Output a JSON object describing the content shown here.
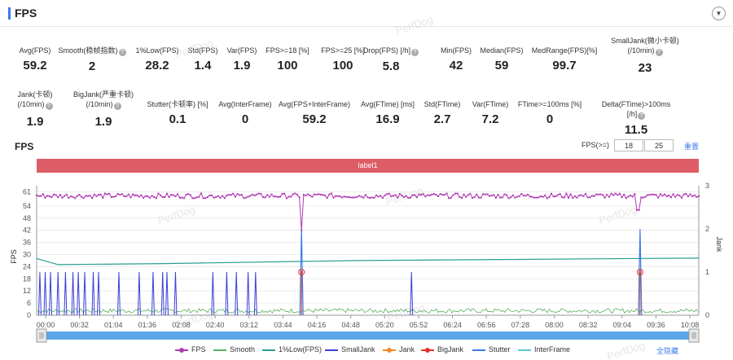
{
  "header": {
    "title": "FPS"
  },
  "metrics_row1": [
    {
      "label": "Avg(FPS)",
      "value": "59.2",
      "help": false
    },
    {
      "label": "Smooth(稳帧指数)",
      "value": "2",
      "help": true
    },
    {
      "label": "1%Low(FPS)",
      "value": "28.2",
      "help": false
    },
    {
      "label": "Std(FPS)",
      "value": "1.4",
      "help": false
    },
    {
      "label": "Var(FPS)",
      "value": "1.9",
      "help": false
    },
    {
      "label": "FPS>=18 [%]",
      "value": "100",
      "help": false
    },
    {
      "label": "FPS>=25 [%]",
      "value": "100",
      "help": false
    },
    {
      "label": "Drop(FPS) [/h]",
      "value": "5.8",
      "help": true
    },
    {
      "label": "Min(FPS)",
      "value": "42",
      "help": false
    },
    {
      "label": "Median(FPS)",
      "value": "59",
      "help": false
    },
    {
      "label": "MedRange(FPS)[%]",
      "value": "99.7",
      "help": false
    },
    {
      "label": "SmallJank(微小卡顿)",
      "label2": "(/10min)",
      "value": "23",
      "help": true
    }
  ],
  "metrics_row2": [
    {
      "label": "Jank(卡顿)",
      "label2": "(/10min)",
      "value": "1.9",
      "help": true
    },
    {
      "label": "BigJank(严重卡顿)",
      "label2": "(/10min)",
      "value": "1.9",
      "help": true
    },
    {
      "label": "Stutter(卡顿率) [%]",
      "value": "0.1",
      "help": false
    },
    {
      "label": "Avg(InterFrame)",
      "value": "0",
      "help": false
    },
    {
      "label": "Avg(FPS+InterFrame)",
      "value": "59.2",
      "help": false
    },
    {
      "label": "Avg(FTime) [ms]",
      "value": "16.9",
      "help": false
    },
    {
      "label": "Std(FTime)",
      "value": "2.7",
      "help": false
    },
    {
      "label": "Var(FTime)",
      "value": "7.2",
      "help": false
    },
    {
      "label": "FTime>=100ms [%]",
      "value": "0",
      "help": false
    },
    {
      "label": "Delta(FTime)>100ms [/h]",
      "value": "11.5",
      "help": true
    }
  ],
  "chart_controls": {
    "title": "FPS",
    "fps_threshold_label": "FPS(>=)",
    "threshold_1": "18",
    "threshold_2": "25",
    "reset_label": "重置",
    "label_band": "label1"
  },
  "watermark": "PerfDog",
  "legend": [
    {
      "name": "FPS",
      "color": "#b03bb3"
    },
    {
      "name": "Smooth",
      "color": "#56b15a"
    },
    {
      "name": "1%Low(FPS)",
      "color": "#2a9d8f"
    },
    {
      "name": "SmallJank",
      "color": "#3a3fd8"
    },
    {
      "name": "Jank",
      "color": "#f08a24"
    },
    {
      "name": "BigJank",
      "color": "#e0342d"
    },
    {
      "name": "Stutter",
      "color": "#3b7bea"
    },
    {
      "name": "InterFrame",
      "color": "#5bc6da"
    }
  ],
  "hide_all_label": "全隐藏",
  "chart_data": {
    "type": "line",
    "xlabel": "",
    "ylabel": "FPS",
    "y2label": "Jank",
    "ylim": [
      0,
      64
    ],
    "y2lim": [
      0,
      3
    ],
    "yticks": [
      0,
      6,
      12,
      18,
      24,
      30,
      36,
      42,
      48,
      54,
      61
    ],
    "y2ticks": [
      0,
      1,
      2,
      3
    ],
    "x_range_seconds": [
      0,
      620
    ],
    "xticks": [
      "00:00",
      "00:32",
      "01:04",
      "01:36",
      "02:08",
      "02:40",
      "03:12",
      "03:44",
      "04:16",
      "04:48",
      "05:20",
      "05:52",
      "06:24",
      "06:56",
      "07:28",
      "08:00",
      "08:32",
      "09:04",
      "09:36",
      "10:08"
    ],
    "series": [
      {
        "name": "FPS",
        "color": "#b03bb3",
        "baseline": 59,
        "dips": [
          {
            "t": 248,
            "value": 42
          },
          {
            "t": 563,
            "value": 52
          }
        ]
      },
      {
        "name": "Smooth",
        "color": "#56b15a",
        "baseline": 2
      },
      {
        "name": "1%Low(FPS)",
        "color": "#2a9d8f",
        "points": [
          [
            0,
            28
          ],
          [
            20,
            25
          ],
          [
            120,
            25.5
          ],
          [
            300,
            27
          ],
          [
            620,
            28.2
          ]
        ]
      },
      {
        "name": "SmallJank",
        "color": "#3a3fd8",
        "axis": "right",
        "spikes": [
          3,
          8,
          13,
          20,
          27,
          34,
          39,
          45,
          53,
          58,
          77,
          96,
          109,
          118,
          122,
          130,
          165,
          178,
          187,
          198,
          205,
          351
        ]
      },
      {
        "name": "BigJank",
        "color": "#e0342d",
        "axis": "right",
        "events": [
          {
            "t": 248,
            "value": 1
          },
          {
            "t": 565,
            "value": 1
          }
        ]
      },
      {
        "name": "Jank",
        "color": "#f08a24",
        "axis": "right",
        "events": [
          {
            "t": 248,
            "value": 1
          },
          {
            "t": 565,
            "value": 1
          }
        ]
      },
      {
        "name": "Stutter",
        "color": "#3b7bea",
        "axis": "right",
        "spikes": [
          {
            "t": 248,
            "value": 2
          },
          {
            "t": 565,
            "value": 2
          }
        ]
      }
    ],
    "grid": true,
    "legend_position": "bottom"
  }
}
